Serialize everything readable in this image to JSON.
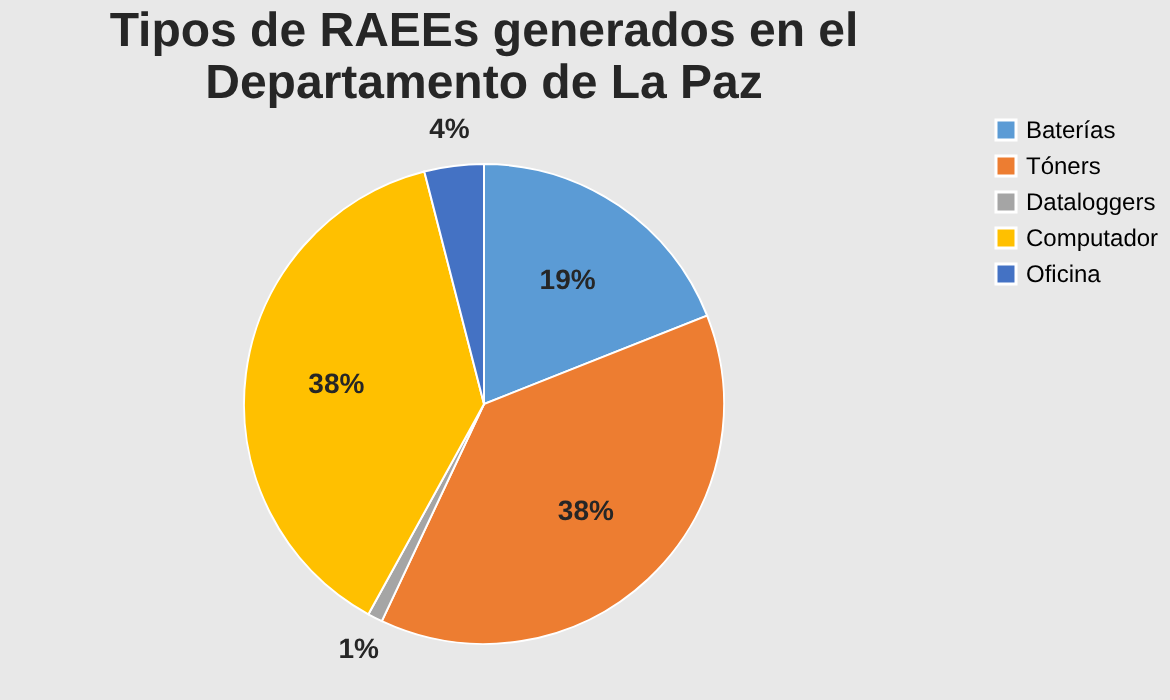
{
  "chart_data": {
    "type": "pie",
    "title": "Tipos de RAEEs generados en el\nDepartamento de La Paz",
    "categories": [
      "Baterías",
      "Tóners",
      "Dataloggers",
      "Computador",
      "Oficina"
    ],
    "values": [
      19,
      38,
      1,
      38,
      4
    ],
    "colors": [
      "#5b9bd5",
      "#ed7d31",
      "#a5a5a5",
      "#ffc000",
      "#4472c4"
    ],
    "value_labels": [
      "19%",
      "38%",
      "1%",
      "38%",
      "4%"
    ],
    "legend": "right"
  }
}
